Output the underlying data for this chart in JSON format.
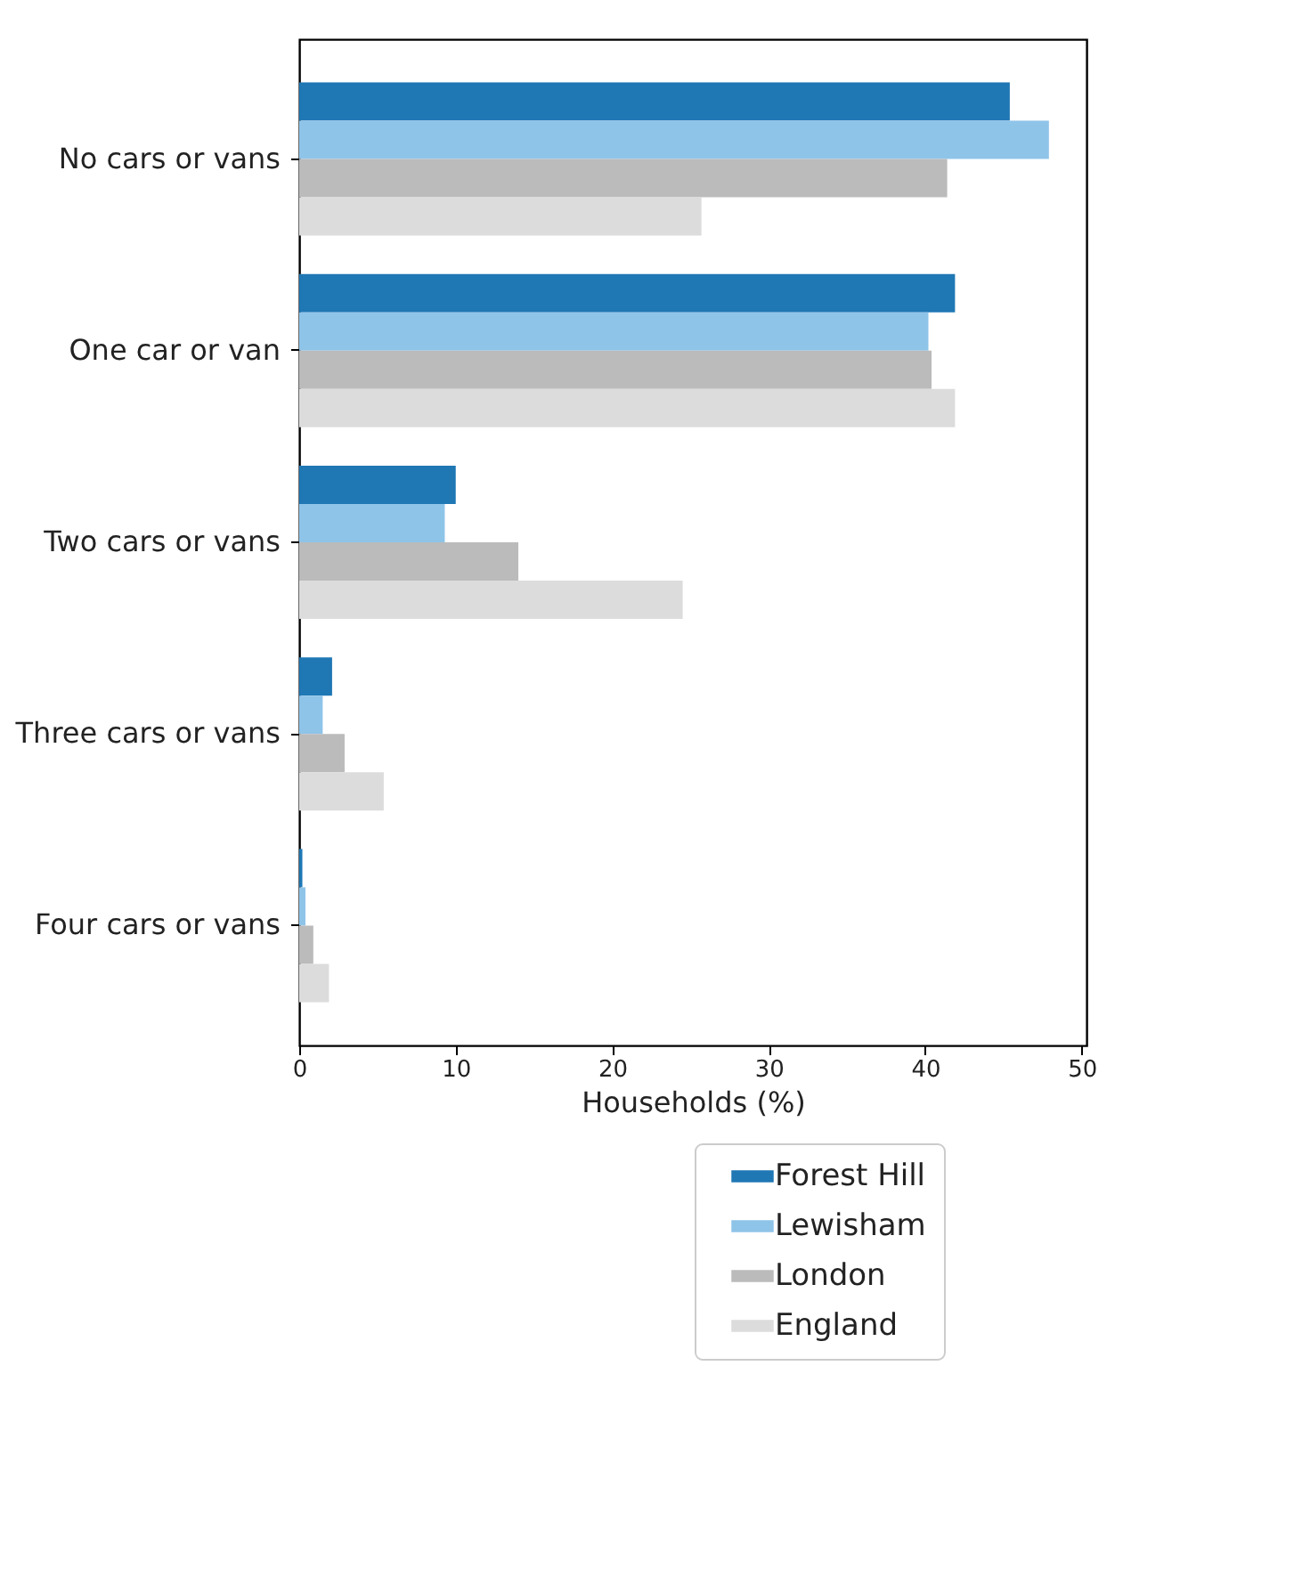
{
  "chart_data": {
    "type": "bar",
    "orientation": "horizontal",
    "xlabel": "Households (%)",
    "categories": [
      "No cars or vans",
      "One car or van",
      "Two cars or vans",
      "Three cars or vans",
      "Four cars or vans"
    ],
    "series": [
      {
        "name": "Forest Hill",
        "color": "#1f77b4",
        "values": [
          45.4,
          41.9,
          10.0,
          2.1,
          0.2
        ]
      },
      {
        "name": "Lewisham",
        "color": "#8fc4e9",
        "values": [
          47.9,
          40.2,
          9.3,
          1.5,
          0.4
        ]
      },
      {
        "name": "London",
        "color": "#bbbbbb",
        "values": [
          41.4,
          40.4,
          14.0,
          2.9,
          0.9
        ]
      },
      {
        "name": "England",
        "color": "#dcdcdc",
        "values": [
          25.7,
          41.9,
          24.5,
          5.4,
          1.9
        ]
      }
    ],
    "xlim": [
      0,
      50.3
    ],
    "xticks": [
      0,
      10,
      20,
      30,
      40,
      50
    ],
    "grid": false,
    "legend": "bottom right"
  }
}
